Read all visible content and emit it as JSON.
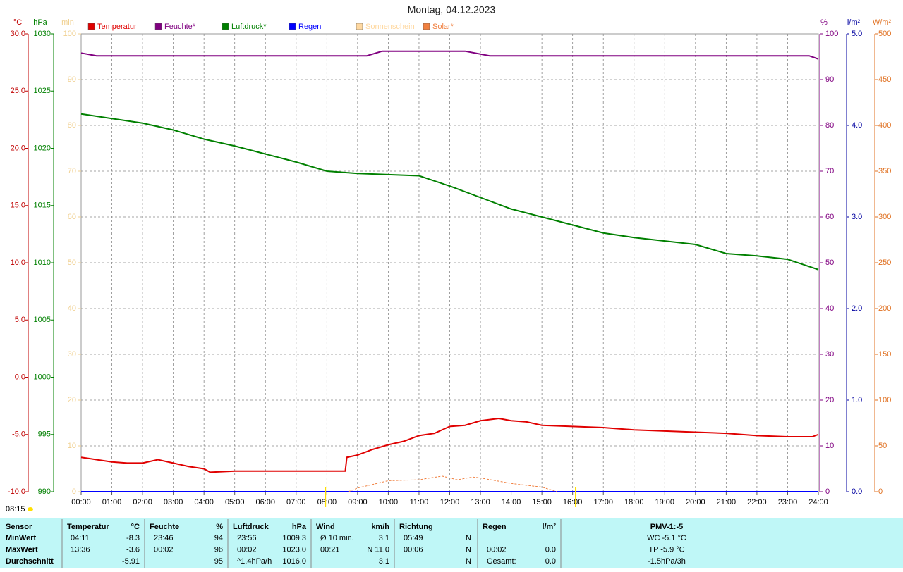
{
  "chart_data": {
    "type": "line",
    "title": "Montag, 04.12.2023",
    "axes": [
      {
        "unit": "°C",
        "color": "#c00000",
        "lim": [
          -10,
          30
        ],
        "ticks": [
          {
            "value": -10,
            "label": "-10.0"
          },
          {
            "value": -5,
            "label": "-5.0"
          },
          {
            "value": 0,
            "label": "0.0"
          },
          {
            "value": 5,
            "label": "5.0"
          },
          {
            "value": 10,
            "label": "10.0"
          },
          {
            "value": 15,
            "label": "15.0"
          },
          {
            "value": 20,
            "label": "20.0"
          },
          {
            "value": 25,
            "label": "25.0"
          },
          {
            "value": 30,
            "label": "30.0"
          }
        ]
      },
      {
        "unit": "hPa",
        "color": "#008000",
        "lim": [
          990,
          1030
        ],
        "ticks": [
          990,
          995,
          1000,
          1005,
          1010,
          1015,
          1020,
          1025,
          1030
        ]
      },
      {
        "unit": "min",
        "color": "#f0d090",
        "lim": [
          0,
          100
        ],
        "ticks": [
          0,
          10,
          20,
          30,
          40,
          50,
          60,
          70,
          80,
          90,
          100
        ]
      },
      {
        "unit": "%",
        "color": "#800080",
        "lim": [
          0,
          100
        ],
        "ticks": [
          0,
          10,
          20,
          30,
          40,
          50,
          60,
          70,
          80,
          90,
          100
        ]
      },
      {
        "unit": "l/m²",
        "color": "#0000a0",
        "lim": [
          0,
          5
        ],
        "ticks": [
          {
            "value": 0,
            "label": "0.0"
          },
          {
            "value": 1,
            "label": "1.0"
          },
          {
            "value": 2,
            "label": "2.0"
          },
          {
            "value": 3,
            "label": "3.0"
          },
          {
            "value": 4,
            "label": "4.0"
          },
          {
            "value": 5,
            "label": "5.0"
          }
        ]
      },
      {
        "unit": "W/m²",
        "color": "#e07020",
        "lim": [
          0,
          500
        ],
        "ticks": [
          0,
          50,
          100,
          150,
          200,
          250,
          300,
          350,
          400,
          450,
          500
        ]
      }
    ],
    "xlim": [
      0,
      24
    ],
    "xticks": [
      {
        "value": 0,
        "label": "00:00"
      },
      {
        "value": 1,
        "label": "01:00"
      },
      {
        "value": 2,
        "label": "02:00"
      },
      {
        "value": 3,
        "label": "03:00"
      },
      {
        "value": 4,
        "label": "04:00"
      },
      {
        "value": 5,
        "label": "05:00"
      },
      {
        "value": 6,
        "label": "06:00"
      },
      {
        "value": 7,
        "label": "07:00"
      },
      {
        "value": 8,
        "label": "08:00"
      },
      {
        "value": 9,
        "label": "09:00"
      },
      {
        "value": 10,
        "label": "10:00"
      },
      {
        "value": 11,
        "label": "11:00"
      },
      {
        "value": 12,
        "label": "12:00"
      },
      {
        "value": 13,
        "label": "13:00"
      },
      {
        "value": 14,
        "label": "14:00"
      },
      {
        "value": 15,
        "label": "15:00"
      },
      {
        "value": 16,
        "label": "16:00"
      },
      {
        "value": 17,
        "label": "17:00"
      },
      {
        "value": 18,
        "label": "18:00"
      },
      {
        "value": 19,
        "label": "19:00"
      },
      {
        "value": 20,
        "label": "20:00"
      },
      {
        "value": 21,
        "label": "21:00"
      },
      {
        "value": 22,
        "label": "22:00"
      },
      {
        "value": 23,
        "label": "23:00"
      },
      {
        "value": 24,
        "label": "24:00"
      }
    ],
    "grid": true,
    "grid_axis": 2,
    "series": [
      {
        "name": "Temperatur",
        "color": "#e00000",
        "axis": 0,
        "style": "solid",
        "x": [
          0,
          0.5,
          1,
          1.5,
          2,
          2.5,
          3,
          3.5,
          4,
          4.2,
          5,
          6,
          7,
          8,
          8.6,
          8.65,
          9,
          9.5,
          10,
          10.5,
          11,
          11.5,
          12,
          12.5,
          13,
          13.6,
          14,
          14.5,
          15,
          16,
          17,
          18,
          19,
          20,
          21,
          22,
          23,
          23.8,
          24
        ],
        "values": [
          -7.0,
          -7.2,
          -7.4,
          -7.5,
          -7.5,
          -7.2,
          -7.5,
          -7.8,
          -8.0,
          -8.3,
          -8.2,
          -8.2,
          -8.2,
          -8.2,
          -8.2,
          -7.0,
          -6.8,
          -6.3,
          -5.9,
          -5.6,
          -5.1,
          -4.9,
          -4.3,
          -4.2,
          -3.8,
          -3.6,
          -3.8,
          -3.9,
          -4.2,
          -4.3,
          -4.4,
          -4.6,
          -4.7,
          -4.8,
          -4.9,
          -5.1,
          -5.2,
          -5.2,
          -5.0
        ]
      },
      {
        "name": "Feuchte*",
        "color": "#800080",
        "axis": 3,
        "style": "solid",
        "x": [
          0,
          0.5,
          9.3,
          9.8,
          12.5,
          13.3,
          23.7,
          24
        ],
        "values": [
          95.8,
          95.2,
          95.2,
          96.2,
          96.2,
          95.2,
          95.2,
          94.5
        ]
      },
      {
        "name": "Luftdruck*",
        "color": "#008000",
        "axis": 1,
        "style": "solid",
        "x": [
          0,
          1,
          2,
          3,
          4,
          5,
          6,
          7,
          8,
          9,
          10,
          11,
          12,
          13,
          14,
          15,
          16,
          17,
          18,
          19,
          20,
          21,
          22,
          23,
          24
        ],
        "values": [
          1023.0,
          1022.6,
          1022.2,
          1021.6,
          1020.8,
          1020.2,
          1019.5,
          1018.8,
          1018.0,
          1017.8,
          1017.7,
          1017.6,
          1016.7,
          1015.7,
          1014.7,
          1014.0,
          1013.3,
          1012.6,
          1012.2,
          1011.9,
          1011.6,
          1010.8,
          1010.6,
          1010.3,
          1009.4
        ]
      },
      {
        "name": "Regen",
        "color": "#0000ff",
        "axis": 4,
        "style": "solid",
        "x": [
          0,
          24
        ],
        "values": [
          0,
          0
        ]
      },
      {
        "name": "Sonnenschein",
        "color": "#ffd8a0",
        "axis": 2,
        "style": "solid",
        "x": [],
        "values": []
      },
      {
        "name": "Solar*",
        "color": "#f08040",
        "axis": 5,
        "style": "dashed",
        "x": [
          8.7,
          9,
          9.5,
          10,
          11,
          11.75,
          12.25,
          12.75,
          13,
          14,
          15,
          15.5
        ],
        "values": [
          0,
          4,
          8,
          12,
          13,
          17,
          13,
          16,
          15,
          9,
          5,
          0
        ]
      }
    ],
    "sun_markers": [
      7.95,
      16.1
    ],
    "time_label": "08:15"
  },
  "table": {
    "header": [
      "Sensor",
      "Temperatur",
      "°C",
      "Feuchte",
      "%",
      "Luftdruck",
      "hPa",
      "Wind",
      "km/h",
      "Richtung",
      null,
      "Regen",
      "l/m²",
      "PMV-1:-5"
    ],
    "rows": [
      [
        "MinWert",
        "04:11",
        "-8.3",
        "23:46",
        "94",
        "23:56",
        "1009.3",
        "Ø 10 min.",
        "3.1",
        "05:49",
        "N",
        null,
        null,
        "WC -5.1 °C"
      ],
      [
        "MaxWert",
        "13:36",
        "-3.6",
        "00:02",
        "96",
        "00:02",
        "1023.0",
        "00:21",
        "N 11.0",
        "00:06",
        "N",
        "00:02",
        "0.0",
        "TP -5.9 °C"
      ],
      [
        "Durchschnitt",
        null,
        "-5.91",
        null,
        "95",
        "^1.4hPa/h",
        "1016.0",
        null,
        "3.1",
        null,
        "N",
        "Gesamt:",
        "0.0",
        "-1.5hPa/3h"
      ]
    ]
  }
}
